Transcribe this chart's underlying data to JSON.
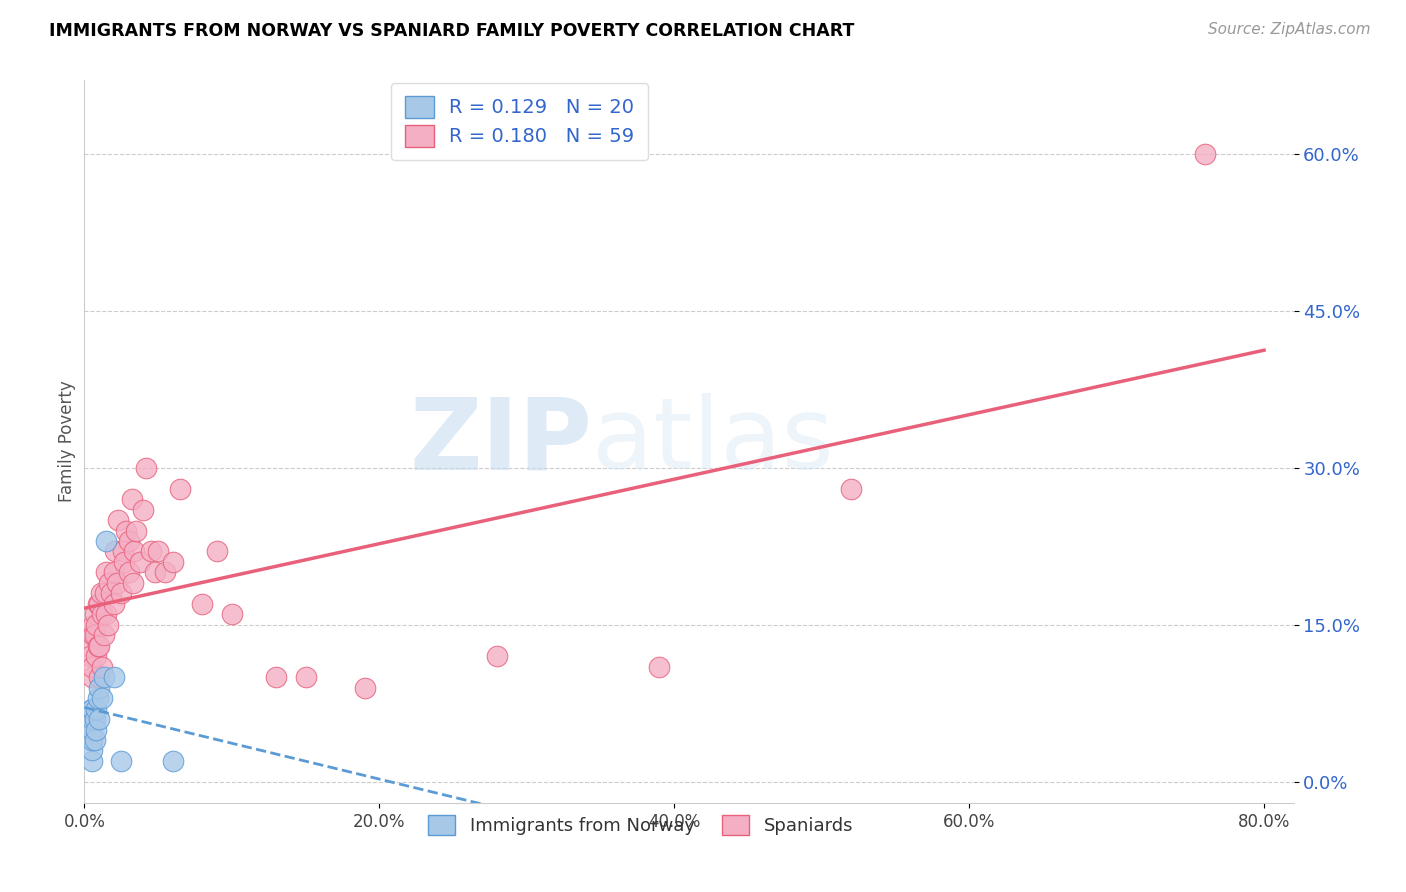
{
  "title": "IMMIGRANTS FROM NORWAY VS SPANIARD FAMILY POVERTY CORRELATION CHART",
  "source": "Source: ZipAtlas.com",
  "ylabel": "Family Poverty",
  "legend_label1": "Immigrants from Norway",
  "legend_label2": "Spaniards",
  "r1": "0.129",
  "n1": "20",
  "r2": "0.180",
  "n2": "59",
  "xlim": [
    0.0,
    0.82
  ],
  "ylim": [
    -0.02,
    0.67
  ],
  "yticks": [
    0.0,
    0.15,
    0.3,
    0.45,
    0.6
  ],
  "ytick_labels": [
    "0.0%",
    "15.0%",
    "30.0%",
    "45.0%",
    "60.0%"
  ],
  "xticks": [
    0.0,
    0.2,
    0.4,
    0.6,
    0.8
  ],
  "xtick_labels": [
    "0.0%",
    "20.0%",
    "40.0%",
    "60.0%",
    "80.0%"
  ],
  "color_norway": "#a8c8e8",
  "color_norway_line": "#5b9bd5",
  "color_spaniard": "#f4afc5",
  "color_spaniard_line": "#e8607a",
  "watermark_zip": "ZIP",
  "watermark_atlas": "atlas",
  "norway_x": [
    0.005,
    0.005,
    0.005,
    0.005,
    0.005,
    0.005,
    0.005,
    0.007,
    0.007,
    0.008,
    0.008,
    0.009,
    0.01,
    0.01,
    0.012,
    0.013,
    0.015,
    0.02,
    0.025,
    0.06
  ],
  "norway_y": [
    0.02,
    0.03,
    0.04,
    0.05,
    0.06,
    0.07,
    0.07,
    0.04,
    0.06,
    0.05,
    0.07,
    0.08,
    0.06,
    0.09,
    0.08,
    0.1,
    0.23,
    0.1,
    0.02,
    0.02
  ],
  "spaniard_x": [
    0.003,
    0.004,
    0.005,
    0.005,
    0.006,
    0.006,
    0.007,
    0.007,
    0.008,
    0.008,
    0.009,
    0.009,
    0.01,
    0.01,
    0.01,
    0.011,
    0.012,
    0.012,
    0.013,
    0.014,
    0.015,
    0.015,
    0.016,
    0.017,
    0.018,
    0.02,
    0.02,
    0.021,
    0.022,
    0.023,
    0.025,
    0.026,
    0.027,
    0.028,
    0.03,
    0.03,
    0.032,
    0.033,
    0.034,
    0.035,
    0.038,
    0.04,
    0.042,
    0.045,
    0.048,
    0.05,
    0.055,
    0.06,
    0.065,
    0.08,
    0.09,
    0.1,
    0.13,
    0.15,
    0.19,
    0.28,
    0.39,
    0.52,
    0.76
  ],
  "spaniard_y": [
    0.13,
    0.12,
    0.1,
    0.11,
    0.15,
    0.14,
    0.14,
    0.16,
    0.12,
    0.15,
    0.13,
    0.17,
    0.1,
    0.13,
    0.17,
    0.18,
    0.11,
    0.16,
    0.14,
    0.18,
    0.16,
    0.2,
    0.15,
    0.19,
    0.18,
    0.17,
    0.2,
    0.22,
    0.19,
    0.25,
    0.18,
    0.22,
    0.21,
    0.24,
    0.2,
    0.23,
    0.27,
    0.19,
    0.22,
    0.24,
    0.21,
    0.26,
    0.3,
    0.22,
    0.2,
    0.22,
    0.2,
    0.21,
    0.28,
    0.17,
    0.22,
    0.16,
    0.1,
    0.1,
    0.09,
    0.12,
    0.11,
    0.28,
    0.6
  ]
}
